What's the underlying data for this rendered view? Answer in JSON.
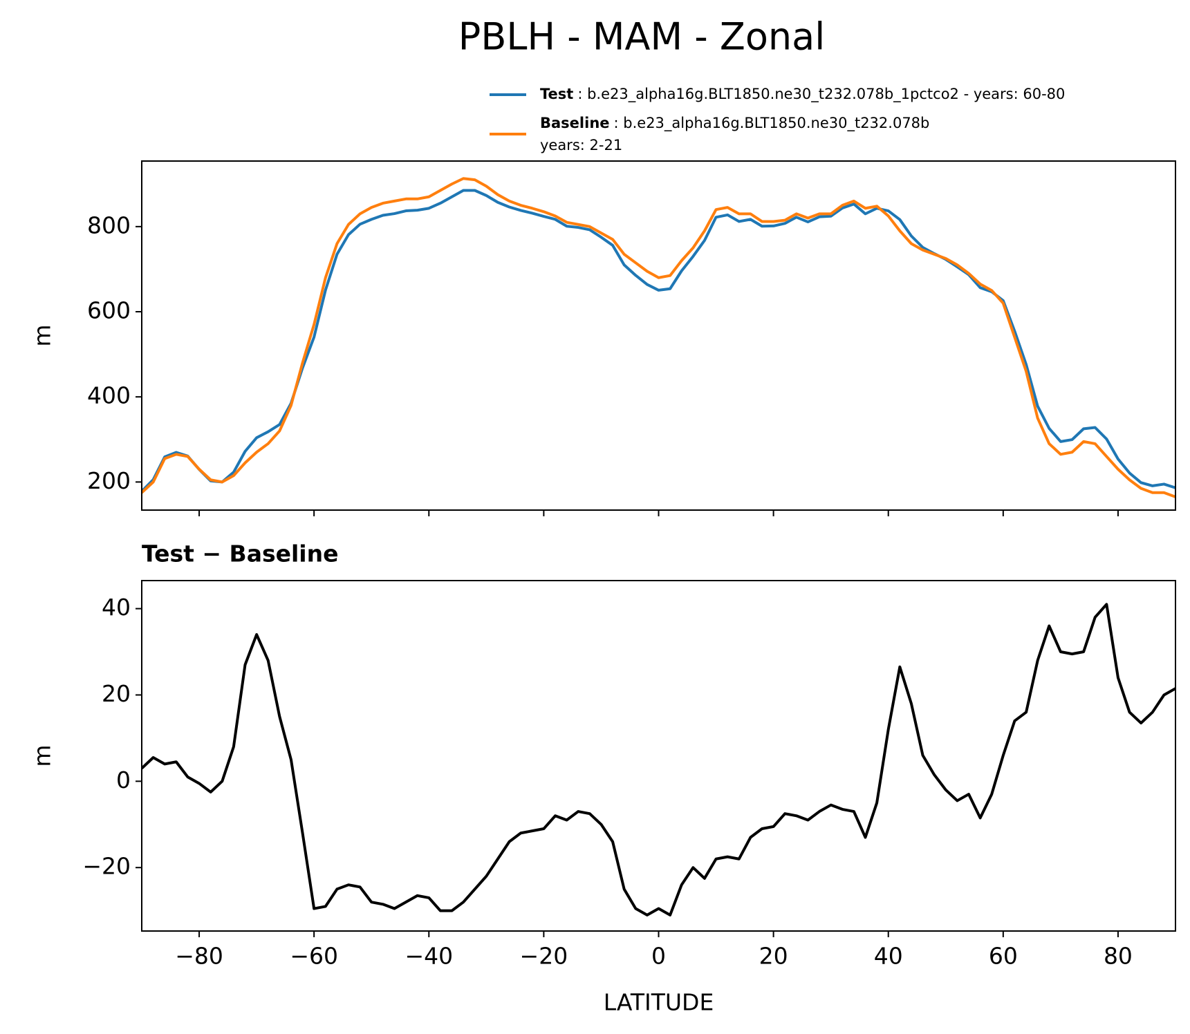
{
  "title": "PBLH - MAM - Zonal",
  "chart_data": [
    {
      "type": "line",
      "ylabel": "m",
      "x": [
        -90,
        -88,
        -86,
        -84,
        -82,
        -80,
        -78,
        -76,
        -74,
        -72,
        -70,
        -68,
        -66,
        -64,
        -62,
        -60,
        -58,
        -56,
        -54,
        -52,
        -50,
        -48,
        -46,
        -44,
        -42,
        -40,
        -38,
        -36,
        -34,
        -32,
        -30,
        -28,
        -26,
        -24,
        -22,
        -20,
        -18,
        -16,
        -14,
        -12,
        -10,
        -8,
        -6,
        -4,
        -2,
        0,
        2,
        4,
        6,
        8,
        10,
        12,
        14,
        16,
        18,
        20,
        22,
        24,
        26,
        28,
        30,
        32,
        34,
        36,
        38,
        40,
        42,
        44,
        46,
        48,
        50,
        52,
        54,
        56,
        58,
        60,
        62,
        64,
        66,
        68,
        70,
        72,
        74,
        76,
        78,
        80,
        82,
        84,
        86,
        88,
        90
      ],
      "series": [
        {
          "name": "Test",
          "color": "#1f77b4",
          "legend_lines": [
            ": b.e23_alpha16g.BLT1850.ne30_t232.078b_1pctco2 - years: 60-80"
          ],
          "values": [
            178,
            205.5,
            259,
            269.5,
            261,
            229.5,
            202.5,
            200,
            223,
            272,
            304,
            318,
            335,
            385,
            468,
            540.5,
            651,
            735,
            781,
            805.5,
            817,
            826.5,
            830.5,
            837,
            838.5,
            843,
            855,
            870,
            885,
            885,
            873,
            857,
            846,
            838,
            831.5,
            824,
            817,
            801,
            798,
            792.5,
            775,
            756,
            710,
            685.5,
            664,
            650.5,
            654,
            696,
            730,
            767.5,
            822,
            827.5,
            812,
            817,
            801,
            801.5,
            807.5,
            822,
            811,
            823,
            824.5,
            843.5,
            853,
            830,
            843,
            837,
            816.5,
            778,
            751,
            736.5,
            723,
            705.5,
            687,
            656.5,
            647,
            626,
            554,
            476,
            378,
            326,
            295,
            299.5,
            325,
            328,
            301,
            254,
            221,
            198.5,
            191,
            195,
            186.5
          ]
        },
        {
          "name": "Baseline",
          "color": "#ff7f0e",
          "legend_lines": [
            ": b.e23_alpha16g.BLT1850.ne30_t232.078b",
            "years: 2-21"
          ],
          "values": [
            175,
            200,
            255,
            265,
            260,
            230,
            205,
            200,
            215,
            245,
            270,
            290,
            320,
            380,
            480,
            570,
            680,
            760,
            805,
            830,
            845,
            855,
            860,
            865,
            865,
            870,
            885,
            900,
            913,
            910,
            895,
            875,
            860,
            850,
            843,
            835,
            825,
            810,
            805,
            800,
            785,
            770,
            735,
            715,
            695,
            680,
            685,
            720,
            750,
            790,
            840,
            845,
            830,
            830,
            812,
            812,
            815,
            830,
            820,
            830,
            830,
            850,
            860,
            843,
            848,
            825,
            790,
            760,
            745,
            735,
            725,
            710,
            690,
            665,
            650,
            620,
            540,
            460,
            350,
            290,
            265,
            270,
            295,
            290,
            260,
            230,
            205,
            185,
            175,
            175,
            165
          ]
        }
      ],
      "xlim": [
        -90,
        90
      ],
      "xticks": [
        -80,
        -60,
        -40,
        -20,
        0,
        20,
        40,
        60,
        80
      ],
      "ylim": [
        134,
        954
      ],
      "yticks": [
        200,
        400,
        600,
        800
      ]
    },
    {
      "type": "line",
      "title": "Test − Baseline",
      "xlabel": "LATITUDE",
      "ylabel": "m",
      "x": [
        -90,
        -88,
        -86,
        -84,
        -82,
        -80,
        -78,
        -76,
        -74,
        -72,
        -70,
        -68,
        -66,
        -64,
        -62,
        -60,
        -58,
        -56,
        -54,
        -52,
        -50,
        -48,
        -46,
        -44,
        -42,
        -40,
        -38,
        -36,
        -34,
        -32,
        -30,
        -28,
        -26,
        -24,
        -22,
        -20,
        -18,
        -16,
        -14,
        -12,
        -10,
        -8,
        -6,
        -4,
        -2,
        0,
        2,
        4,
        6,
        8,
        10,
        12,
        14,
        16,
        18,
        20,
        22,
        24,
        26,
        28,
        30,
        32,
        34,
        36,
        38,
        40,
        42,
        44,
        46,
        48,
        50,
        52,
        54,
        56,
        58,
        60,
        62,
        64,
        66,
        68,
        70,
        72,
        74,
        76,
        78,
        80,
        82,
        84,
        86,
        88,
        90
      ],
      "color": "#000000",
      "values": [
        3,
        5.5,
        4,
        4.5,
        1,
        -0.5,
        -2.5,
        0,
        8,
        27,
        34,
        28,
        15,
        5,
        -12,
        -29.5,
        -29,
        -25,
        -24,
        -24.5,
        -28,
        -28.5,
        -29.5,
        -28,
        -26.5,
        -27,
        -30,
        -30,
        -28,
        -25,
        -22,
        -18,
        -14,
        -12,
        -11.5,
        -11,
        -8,
        -9,
        -7,
        -7.5,
        -10,
        -14,
        -25,
        -29.5,
        -31,
        -29.5,
        -31,
        -24,
        -20,
        -22.5,
        -18,
        -17.5,
        -18,
        -13,
        -11,
        -10.5,
        -7.5,
        -8,
        -9,
        -7,
        -5.5,
        -6.5,
        -7,
        -13,
        -5,
        12,
        26.5,
        18,
        6,
        1.5,
        -2,
        -4.5,
        -3,
        -8.5,
        -3,
        6,
        14,
        16,
        28,
        36,
        30,
        29.5,
        30,
        38,
        41,
        24,
        16,
        13.5,
        16,
        20,
        21.5
      ],
      "xlim": [
        -90,
        90
      ],
      "xticks": [
        {
          "value": -80,
          "label": "−80"
        },
        {
          "value": -60,
          "label": "−60"
        },
        {
          "value": -40,
          "label": "−40"
        },
        {
          "value": -20,
          "label": "−20"
        },
        0,
        20,
        40,
        60,
        80
      ],
      "ylim": [
        -34.7,
        46.5
      ],
      "yticks": [
        {
          "value": -20,
          "label": "−20"
        },
        0,
        20,
        40
      ]
    }
  ]
}
